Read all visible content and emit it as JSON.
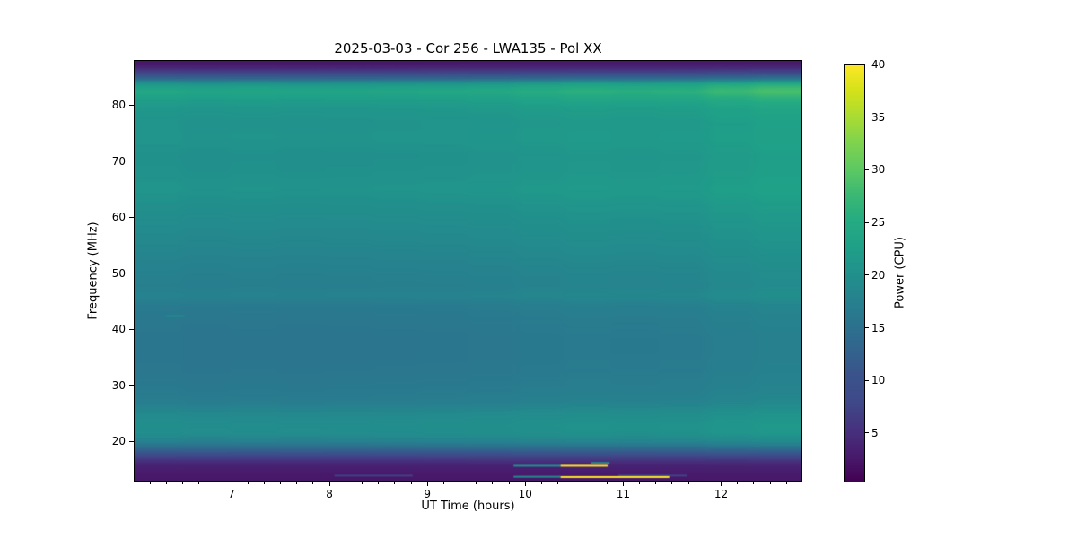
{
  "figure": {
    "background": "#ffffff"
  },
  "chart_data": {
    "type": "heatmap",
    "title": "2025-03-03 - Cor 256 - LWA135 - Pol XX",
    "xlabel": "UT Time (hours)",
    "ylabel": "Frequency (MHz)",
    "colorbar_label": "Power (CPU)",
    "xlim": [
      6.01,
      12.82
    ],
    "ylim": [
      13.0,
      87.9
    ],
    "x_major_ticks": [
      7,
      8,
      9,
      10,
      11,
      12
    ],
    "x_minor_step_hours": 0.1666667,
    "y_major_ticks": [
      20,
      30,
      40,
      50,
      60,
      70,
      80
    ],
    "colorbar_range": [
      0.4,
      40
    ],
    "colorbar_ticks": [
      5,
      10,
      15,
      20,
      25,
      30,
      35,
      40
    ],
    "grid": false,
    "colormap_name": "viridis",
    "colormap_stops": [
      "#440154",
      "#481b6d",
      "#46327e",
      "#3f4889",
      "#3b528b",
      "#33638d",
      "#2c728e",
      "#26828e",
      "#21918c",
      "#1fa088",
      "#25ab82",
      "#3bb873",
      "#5ec962",
      "#7fd34e",
      "#aadc32",
      "#d4e21a",
      "#fde725"
    ],
    "value_model": "power(f,t) = base_power[f] + right_boost_amp[f] * column_brightness[t]; bright RFI line segments overlaid near band edges",
    "x_hours": [
      6.05,
      6.57,
      7.09,
      7.61,
      8.13,
      8.65,
      9.17,
      9.7,
      10.22,
      10.74,
      11.26,
      11.78,
      12.3,
      12.82
    ],
    "column_brightness": [
      0.15,
      0.05,
      0.1,
      0.05,
      0.08,
      0.12,
      0.15,
      0.22,
      0.38,
      0.5,
      0.45,
      0.5,
      0.78,
      1.0
    ],
    "freq_mhz": [
      87.6,
      86.7,
      85.8,
      84.8,
      83.7,
      82.5,
      81.2,
      79.5,
      77.0,
      74.0,
      71.0,
      68.0,
      65.0,
      62.0,
      59.0,
      56.0,
      53.0,
      50.0,
      47.8,
      46.0,
      44.0,
      41.5,
      38.5,
      35.5,
      32.5,
      29.5,
      27.0,
      25.0,
      23.0,
      21.2,
      19.8,
      18.6,
      17.5,
      16.5,
      15.5,
      14.5,
      13.5
    ],
    "base_power": [
      2.5,
      4.0,
      7.5,
      13.0,
      21.0,
      23.5,
      22.0,
      20.8,
      20.2,
      20.4,
      19.8,
      20.0,
      20.4,
      19.6,
      19.0,
      18.4,
      17.8,
      17.2,
      17.0,
      17.6,
      16.2,
      15.9,
      15.6,
      15.6,
      15.8,
      16.2,
      16.8,
      18.6,
      19.4,
      19.2,
      17.0,
      13.0,
      8.5,
      5.0,
      3.4,
      2.9,
      2.5
    ],
    "right_boost_amp": [
      0.2,
      0.4,
      1.0,
      2.0,
      5.0,
      5.5,
      4.0,
      3.0,
      2.6,
      2.6,
      2.5,
      2.5,
      2.6,
      2.4,
      2.3,
      2.3,
      2.2,
      2.2,
      2.2,
      2.2,
      2.0,
      1.9,
      1.8,
      1.8,
      1.8,
      1.8,
      1.9,
      2.0,
      2.0,
      1.9,
      1.6,
      1.0,
      0.6,
      0.3,
      0.2,
      0.1,
      0.1
    ],
    "rfi_segments": [
      {
        "t_start": 8.05,
        "t_end": 8.85,
        "freq_mhz": 13.9,
        "power": 7.0
      },
      {
        "t_start": 10.95,
        "t_end": 11.65,
        "freq_mhz": 13.9,
        "power": 7.5
      },
      {
        "t_start": 6.33,
        "t_end": 6.52,
        "freq_mhz": 42.4,
        "power": 18.5
      },
      {
        "t_start": 9.88,
        "t_end": 10.36,
        "freq_mhz": 15.65,
        "power": 20.0
      },
      {
        "t_start": 10.67,
        "t_end": 10.86,
        "freq_mhz": 16.15,
        "power": 21.0
      },
      {
        "t_start": 10.36,
        "t_end": 10.84,
        "freq_mhz": 15.65,
        "power": 40.0
      },
      {
        "t_start": 9.88,
        "t_end": 10.36,
        "freq_mhz": 13.7,
        "power": 19.0
      },
      {
        "t_start": 10.36,
        "t_end": 11.47,
        "freq_mhz": 13.65,
        "power": 40.0
      }
    ]
  }
}
